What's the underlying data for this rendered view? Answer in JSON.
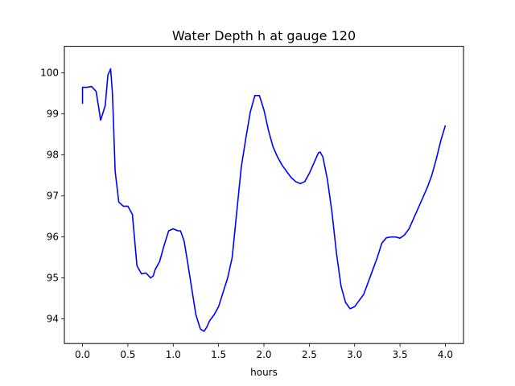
{
  "chart_data": {
    "type": "line",
    "title": "Water Depth h at gauge 120",
    "xlabel": "hours",
    "ylabel": "",
    "xlim": [
      -0.2,
      4.2
    ],
    "ylim": [
      93.4,
      100.65
    ],
    "xticks": [
      0.0,
      0.5,
      1.0,
      1.5,
      2.0,
      2.5,
      3.0,
      3.5,
      4.0
    ],
    "xtick_labels": [
      "0.0",
      "0.5",
      "1.0",
      "1.5",
      "2.0",
      "2.5",
      "3.0",
      "3.5",
      "4.0"
    ],
    "yticks": [
      94,
      95,
      96,
      97,
      98,
      99,
      100
    ],
    "ytick_labels": [
      "94",
      "95",
      "96",
      "97",
      "98",
      "99",
      "100"
    ],
    "grid": false,
    "series": [
      {
        "color": "#0000ff",
        "x": [
          0.0,
          0.0,
          0.05,
          0.1,
          0.15,
          0.2,
          0.25,
          0.28,
          0.31,
          0.33,
          0.36,
          0.4,
          0.45,
          0.5,
          0.55,
          0.6,
          0.65,
          0.7,
          0.73,
          0.75,
          0.78,
          0.8,
          0.85,
          0.9,
          0.95,
          1.0,
          1.05,
          1.08,
          1.12,
          1.15,
          1.2,
          1.25,
          1.3,
          1.34,
          1.37,
          1.4,
          1.45,
          1.5,
          1.55,
          1.6,
          1.65,
          1.7,
          1.75,
          1.8,
          1.85,
          1.9,
          1.95,
          2.0,
          2.05,
          2.1,
          2.15,
          2.2,
          2.25,
          2.3,
          2.35,
          2.4,
          2.45,
          2.5,
          2.55,
          2.6,
          2.62,
          2.65,
          2.7,
          2.75,
          2.8,
          2.85,
          2.9,
          2.95,
          3.0,
          3.05,
          3.1,
          3.15,
          3.2,
          3.25,
          3.3,
          3.35,
          3.4,
          3.45,
          3.5,
          3.55,
          3.6,
          3.65,
          3.7,
          3.75,
          3.8,
          3.85,
          3.9,
          3.95,
          4.0
        ],
        "y": [
          99.25,
          99.65,
          99.65,
          99.67,
          99.55,
          98.85,
          99.2,
          99.95,
          100.1,
          99.5,
          97.6,
          96.85,
          96.75,
          96.75,
          96.55,
          95.3,
          95.1,
          95.12,
          95.05,
          95.0,
          95.05,
          95.2,
          95.4,
          95.8,
          96.15,
          96.2,
          96.15,
          96.15,
          95.9,
          95.5,
          94.8,
          94.1,
          93.75,
          93.7,
          93.8,
          93.95,
          94.1,
          94.3,
          94.65,
          95.0,
          95.5,
          96.6,
          97.7,
          98.4,
          99.05,
          99.45,
          99.45,
          99.1,
          98.6,
          98.2,
          97.95,
          97.75,
          97.6,
          97.45,
          97.35,
          97.3,
          97.35,
          97.55,
          97.8,
          98.05,
          98.07,
          97.95,
          97.4,
          96.6,
          95.6,
          94.8,
          94.4,
          94.25,
          94.3,
          94.45,
          94.6,
          94.9,
          95.2,
          95.5,
          95.85,
          95.98,
          96.0,
          96.0,
          95.97,
          96.05,
          96.2,
          96.45,
          96.7,
          96.95,
          97.2,
          97.5,
          97.9,
          98.35,
          98.72
        ]
      }
    ]
  }
}
